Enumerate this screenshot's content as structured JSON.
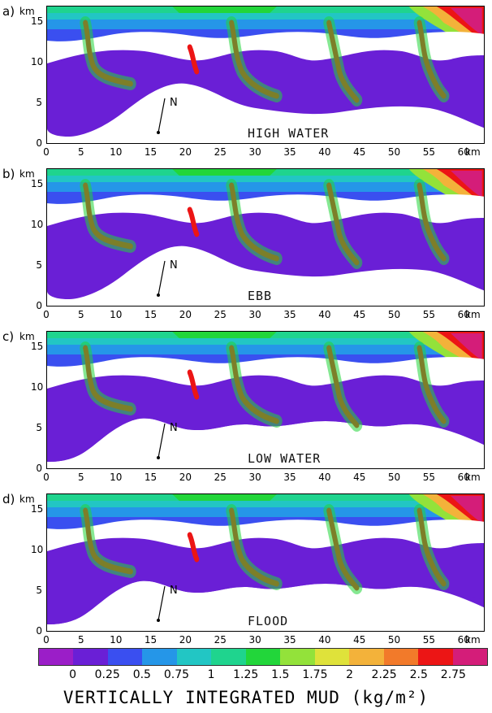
{
  "panels": [
    {
      "letter": "a)",
      "tide": "HIGH WATER"
    },
    {
      "letter": "b)",
      "tide": "EBB"
    },
    {
      "letter": "c)",
      "tide": "LOW WATER"
    },
    {
      "letter": "d)",
      "tide": "FLOOD"
    }
  ],
  "axes": {
    "unit": "km",
    "x_ticks": [
      "0",
      "5",
      "10",
      "15",
      "20",
      "25",
      "30",
      "35",
      "40",
      "45",
      "50",
      "55",
      "60"
    ],
    "y_ticks": [
      "15",
      "10",
      "5",
      "0"
    ],
    "north_label": "N"
  },
  "colorbar": {
    "colors": [
      "#9b1ec8",
      "#6a1fd6",
      "#3a4ff0",
      "#2596e8",
      "#22c6c4",
      "#1fd48e",
      "#22d63a",
      "#93e23a",
      "#dfe23a",
      "#f3b23a",
      "#f27a2a",
      "#ec1515",
      "#d41d79"
    ],
    "labels": [
      "0",
      "0.25",
      "0.5",
      "0.75",
      "1",
      "1.25",
      "1.5",
      "1.75",
      "2",
      "2.25",
      "2.5",
      "2.75"
    ],
    "title": "VERTICALLY INTEGRATED MUD (kg/m²)"
  }
}
